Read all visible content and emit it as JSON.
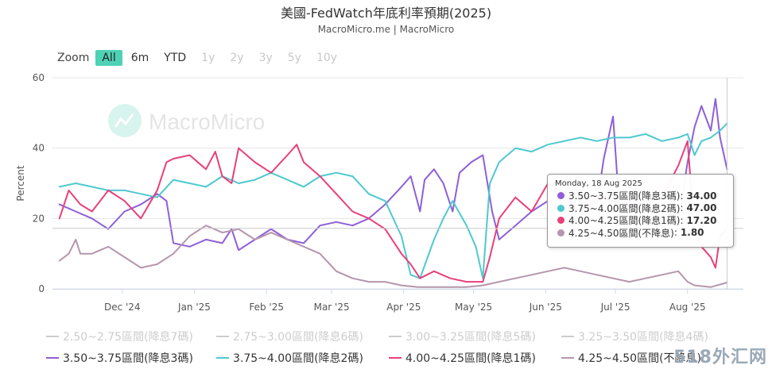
{
  "title": "美國-FedWatch年底利率預期(2025)",
  "subtitle": "MacroMicro.me | MacroMicro",
  "zoom": {
    "label": "Zoom",
    "buttons": [
      {
        "label": "All",
        "state": "active"
      },
      {
        "label": "6m",
        "state": "normal"
      },
      {
        "label": "YTD",
        "state": "normal"
      },
      {
        "label": "1y",
        "state": "disabled"
      },
      {
        "label": "2y",
        "state": "disabled"
      },
      {
        "label": "3y",
        "state": "disabled"
      },
      {
        "label": "5y",
        "state": "disabled"
      },
      {
        "label": "10y",
        "state": "disabled"
      }
    ]
  },
  "watermark": "MacroMicro",
  "corner_mark": "518外汇网",
  "tooltip": {
    "date": "Monday, 18 Aug 2025",
    "rows": [
      {
        "label": "3.50~3.75區間(降息3碼)",
        "value": "34.00",
        "color": "#8e5fd9"
      },
      {
        "label": "3.75~4.00區間(降息2碼)",
        "value": "47.00",
        "color": "#4ec9cf"
      },
      {
        "label": "4.00~4.25區間(降息1碼)",
        "value": "17.20",
        "color": "#e8407a"
      },
      {
        "label": "4.25~4.50區間(不降息)",
        "value": "1.80",
        "color": "#b596ad"
      }
    ]
  },
  "chart_data": {
    "type": "line",
    "ylabel": "Percent",
    "ylim": [
      0,
      60
    ],
    "yticks": [
      0,
      20,
      40,
      60
    ],
    "xlim": [
      "2024-11-01",
      "2025-08-25"
    ],
    "xticks": [
      {
        "label": "Dec '24",
        "date": "2024-12-01"
      },
      {
        "label": "Jan '25",
        "date": "2025-01-01"
      },
      {
        "label": "Feb '25",
        "date": "2025-02-01"
      },
      {
        "label": "Mar '25",
        "date": "2025-03-01"
      },
      {
        "label": "Apr '25",
        "date": "2025-04-01"
      },
      {
        "label": "May '25",
        "date": "2025-05-01"
      },
      {
        "label": "Jun '25",
        "date": "2025-06-01"
      },
      {
        "label": "Jul '25",
        "date": "2025-07-01"
      },
      {
        "label": "Aug '25",
        "date": "2025-08-01"
      }
    ],
    "crosshair_date": "2025-08-18",
    "grid": true,
    "legend_position": "bottom",
    "legend": [
      {
        "name": "2.50~2.75區間(降息7碼)",
        "color": "#cccccc",
        "visible": false
      },
      {
        "name": "2.75~3.00區間(降息6碼)",
        "color": "#cccccc",
        "visible": false
      },
      {
        "name": "3.00~3.25區間(降息5碼)",
        "color": "#cccccc",
        "visible": false
      },
      {
        "name": "3.25~3.50區間(降息4碼)",
        "color": "#cccccc",
        "visible": false
      },
      {
        "name": "3.50~3.75區間(降息3碼)",
        "color": "#8e5fd9",
        "visible": true
      },
      {
        "name": "3.75~4.00區間(降息2碼)",
        "color": "#4ec9cf",
        "visible": true
      },
      {
        "name": "4.00~4.25區間(降息1碼)",
        "color": "#e8407a",
        "visible": true
      },
      {
        "name": "4.25~4.50區間(不降息)",
        "color": "#b596ad",
        "visible": true
      }
    ],
    "series": [
      {
        "name": "3.50~3.75區間(降息3碼)",
        "color": "#8e5fd9",
        "points": [
          [
            "2024-11-04",
            24
          ],
          [
            "2024-11-11",
            22
          ],
          [
            "2024-11-18",
            20
          ],
          [
            "2024-11-25",
            17
          ],
          [
            "2024-12-02",
            22
          ],
          [
            "2024-12-09",
            24
          ],
          [
            "2024-12-16",
            27
          ],
          [
            "2024-12-20",
            25
          ],
          [
            "2024-12-23",
            13
          ],
          [
            "2024-12-30",
            12
          ],
          [
            "2025-01-06",
            14
          ],
          [
            "2025-01-13",
            13
          ],
          [
            "2025-01-17",
            17
          ],
          [
            "2025-01-20",
            11
          ],
          [
            "2025-01-27",
            14
          ],
          [
            "2025-02-03",
            17
          ],
          [
            "2025-02-10",
            14
          ],
          [
            "2025-02-17",
            13
          ],
          [
            "2025-02-24",
            18
          ],
          [
            "2025-03-03",
            19
          ],
          [
            "2025-03-10",
            18
          ],
          [
            "2025-03-17",
            20
          ],
          [
            "2025-03-24",
            24
          ],
          [
            "2025-03-31",
            29
          ],
          [
            "2025-04-04",
            32
          ],
          [
            "2025-04-08",
            22
          ],
          [
            "2025-04-10",
            31
          ],
          [
            "2025-04-14",
            34
          ],
          [
            "2025-04-18",
            30
          ],
          [
            "2025-04-22",
            22
          ],
          [
            "2025-04-25",
            33
          ],
          [
            "2025-04-30",
            36
          ],
          [
            "2025-05-05",
            38
          ],
          [
            "2025-05-09",
            22
          ],
          [
            "2025-05-12",
            14
          ],
          [
            "2025-05-19",
            18
          ],
          [
            "2025-05-26",
            22
          ],
          [
            "2025-06-02",
            25
          ],
          [
            "2025-06-09",
            21
          ],
          [
            "2025-06-16",
            27
          ],
          [
            "2025-06-23",
            24
          ],
          [
            "2025-06-26",
            37
          ],
          [
            "2025-06-30",
            49
          ],
          [
            "2025-07-03",
            20
          ],
          [
            "2025-07-07",
            25
          ],
          [
            "2025-07-14",
            22
          ],
          [
            "2025-07-21",
            24
          ],
          [
            "2025-07-28",
            19
          ],
          [
            "2025-08-01",
            36
          ],
          [
            "2025-08-04",
            46
          ],
          [
            "2025-08-07",
            52
          ],
          [
            "2025-08-11",
            45
          ],
          [
            "2025-08-13",
            54
          ],
          [
            "2025-08-15",
            43
          ],
          [
            "2025-08-18",
            34
          ]
        ]
      },
      {
        "name": "3.75~4.00區間(降息2碼)",
        "color": "#4ec9cf",
        "points": [
          [
            "2024-11-04",
            29
          ],
          [
            "2024-11-11",
            30
          ],
          [
            "2024-11-18",
            29
          ],
          [
            "2024-11-25",
            28
          ],
          [
            "2024-12-02",
            28
          ],
          [
            "2024-12-09",
            27
          ],
          [
            "2024-12-16",
            26
          ],
          [
            "2024-12-23",
            31
          ],
          [
            "2024-12-30",
            30
          ],
          [
            "2025-01-06",
            29
          ],
          [
            "2025-01-13",
            32
          ],
          [
            "2025-01-20",
            30
          ],
          [
            "2025-01-27",
            31
          ],
          [
            "2025-02-03",
            33
          ],
          [
            "2025-02-10",
            31
          ],
          [
            "2025-02-17",
            29
          ],
          [
            "2025-02-24",
            32
          ],
          [
            "2025-03-03",
            33
          ],
          [
            "2025-03-10",
            32
          ],
          [
            "2025-03-17",
            27
          ],
          [
            "2025-03-24",
            25
          ],
          [
            "2025-03-31",
            15
          ],
          [
            "2025-04-04",
            4
          ],
          [
            "2025-04-08",
            3
          ],
          [
            "2025-04-14",
            14
          ],
          [
            "2025-04-18",
            20
          ],
          [
            "2025-04-22",
            25
          ],
          [
            "2025-04-28",
            18
          ],
          [
            "2025-05-02",
            12
          ],
          [
            "2025-05-05",
            3
          ],
          [
            "2025-05-08",
            30
          ],
          [
            "2025-05-12",
            36
          ],
          [
            "2025-05-19",
            40
          ],
          [
            "2025-05-26",
            39
          ],
          [
            "2025-06-02",
            41
          ],
          [
            "2025-06-09",
            42
          ],
          [
            "2025-06-16",
            43
          ],
          [
            "2025-06-23",
            42
          ],
          [
            "2025-06-30",
            43
          ],
          [
            "2025-07-07",
            43
          ],
          [
            "2025-07-14",
            44
          ],
          [
            "2025-07-21",
            42
          ],
          [
            "2025-07-28",
            43
          ],
          [
            "2025-08-01",
            44
          ],
          [
            "2025-08-04",
            38
          ],
          [
            "2025-08-07",
            42
          ],
          [
            "2025-08-11",
            43
          ],
          [
            "2025-08-15",
            45
          ],
          [
            "2025-08-18",
            47
          ]
        ]
      },
      {
        "name": "4.00~4.25區間(降息1碼)",
        "color": "#e8407a",
        "points": [
          [
            "2024-11-04",
            20
          ],
          [
            "2024-11-08",
            28
          ],
          [
            "2024-11-13",
            24
          ],
          [
            "2024-11-18",
            22
          ],
          [
            "2024-11-25",
            28
          ],
          [
            "2024-12-02",
            25
          ],
          [
            "2024-12-09",
            20
          ],
          [
            "2024-12-16",
            28
          ],
          [
            "2024-12-20",
            36
          ],
          [
            "2024-12-23",
            37
          ],
          [
            "2024-12-30",
            38
          ],
          [
            "2025-01-06",
            34
          ],
          [
            "2025-01-10",
            39
          ],
          [
            "2025-01-13",
            32
          ],
          [
            "2025-01-17",
            30
          ],
          [
            "2025-01-20",
            40
          ],
          [
            "2025-01-27",
            36
          ],
          [
            "2025-02-03",
            33
          ],
          [
            "2025-02-10",
            38
          ],
          [
            "2025-02-14",
            41
          ],
          [
            "2025-02-17",
            36
          ],
          [
            "2025-02-24",
            32
          ],
          [
            "2025-03-03",
            27
          ],
          [
            "2025-03-10",
            22
          ],
          [
            "2025-03-17",
            20
          ],
          [
            "2025-03-24",
            17
          ],
          [
            "2025-03-31",
            10
          ],
          [
            "2025-04-04",
            7
          ],
          [
            "2025-04-08",
            3
          ],
          [
            "2025-04-14",
            5
          ],
          [
            "2025-04-21",
            3
          ],
          [
            "2025-04-28",
            2
          ],
          [
            "2025-05-05",
            2
          ],
          [
            "2025-05-08",
            9
          ],
          [
            "2025-05-12",
            20
          ],
          [
            "2025-05-19",
            26
          ],
          [
            "2025-05-26",
            22
          ],
          [
            "2025-06-02",
            30
          ],
          [
            "2025-06-09",
            27
          ],
          [
            "2025-06-16",
            21
          ],
          [
            "2025-06-23",
            26
          ],
          [
            "2025-06-30",
            25
          ],
          [
            "2025-07-07",
            23
          ],
          [
            "2025-07-14",
            25
          ],
          [
            "2025-07-21",
            26
          ],
          [
            "2025-07-28",
            35
          ],
          [
            "2025-08-01",
            42
          ],
          [
            "2025-08-04",
            16
          ],
          [
            "2025-08-07",
            12
          ],
          [
            "2025-08-11",
            9
          ],
          [
            "2025-08-13",
            6
          ],
          [
            "2025-08-15",
            15
          ],
          [
            "2025-08-18",
            17.2
          ]
        ]
      },
      {
        "name": "4.25~4.50區間(不降息)",
        "color": "#b596ad",
        "points": [
          [
            "2024-11-04",
            8
          ],
          [
            "2024-11-08",
            10
          ],
          [
            "2024-11-11",
            14
          ],
          [
            "2024-11-13",
            10
          ],
          [
            "2024-11-18",
            10
          ],
          [
            "2024-11-25",
            12
          ],
          [
            "2024-12-02",
            9
          ],
          [
            "2024-12-09",
            6
          ],
          [
            "2024-12-16",
            7
          ],
          [
            "2024-12-23",
            10
          ],
          [
            "2024-12-30",
            15
          ],
          [
            "2025-01-06",
            18
          ],
          [
            "2025-01-13",
            16
          ],
          [
            "2025-01-20",
            17
          ],
          [
            "2025-01-27",
            14
          ],
          [
            "2025-02-03",
            16
          ],
          [
            "2025-02-10",
            14
          ],
          [
            "2025-02-17",
            12
          ],
          [
            "2025-02-24",
            10
          ],
          [
            "2025-03-03",
            5
          ],
          [
            "2025-03-10",
            3
          ],
          [
            "2025-03-17",
            2
          ],
          [
            "2025-03-24",
            2
          ],
          [
            "2025-03-31",
            1
          ],
          [
            "2025-04-07",
            0.5
          ],
          [
            "2025-04-14",
            0.5
          ],
          [
            "2025-04-21",
            0.5
          ],
          [
            "2025-04-28",
            0.5
          ],
          [
            "2025-05-05",
            1
          ],
          [
            "2025-05-12",
            2
          ],
          [
            "2025-05-19",
            3
          ],
          [
            "2025-05-26",
            4
          ],
          [
            "2025-06-02",
            5
          ],
          [
            "2025-06-09",
            6
          ],
          [
            "2025-06-16",
            5
          ],
          [
            "2025-06-23",
            4
          ],
          [
            "2025-06-30",
            3
          ],
          [
            "2025-07-07",
            2
          ],
          [
            "2025-07-14",
            3
          ],
          [
            "2025-07-21",
            4
          ],
          [
            "2025-07-28",
            5
          ],
          [
            "2025-08-01",
            2
          ],
          [
            "2025-08-04",
            1
          ],
          [
            "2025-08-11",
            0.5
          ],
          [
            "2025-08-18",
            1.8
          ]
        ]
      }
    ]
  }
}
